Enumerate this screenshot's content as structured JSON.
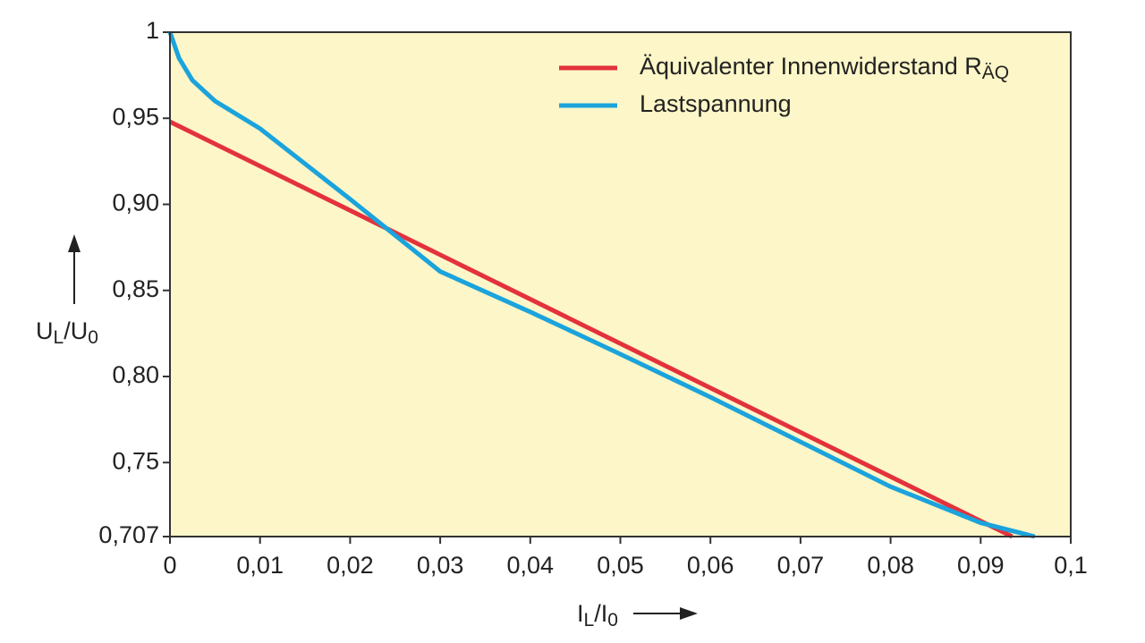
{
  "chart_data": {
    "type": "line",
    "xlabel": [
      "I",
      "L",
      "/I",
      "0"
    ],
    "ylabel": [
      "U",
      "L",
      "/U",
      "0"
    ],
    "xlim": [
      0,
      0.1
    ],
    "ylim": [
      0.707,
      1
    ],
    "xticks": [
      0,
      {
        "value": 0.01,
        "label": "0,01"
      },
      {
        "value": 0.02,
        "label": "0,02"
      },
      {
        "value": 0.03,
        "label": "0,03"
      },
      {
        "value": 0.04,
        "label": "0,04"
      },
      {
        "value": 0.05,
        "label": "0,05"
      },
      {
        "value": 0.06,
        "label": "0,06"
      },
      {
        "value": 0.07,
        "label": "0,07"
      },
      {
        "value": 0.08,
        "label": "0,08"
      },
      {
        "value": 0.09,
        "label": "0,09"
      },
      {
        "value": 0.1,
        "label": "0,1"
      }
    ],
    "yticks": [
      {
        "value": 0.707,
        "label": "0,707"
      },
      {
        "value": 0.75,
        "label": "0,75"
      },
      {
        "value": 0.8,
        "label": "0,80"
      },
      {
        "value": 0.85,
        "label": "0,85"
      },
      {
        "value": 0.9,
        "label": "0,90"
      },
      {
        "value": 0.95,
        "label": "0,95"
      },
      1
    ],
    "legend": "upper right",
    "series": [
      {
        "name": "Äquivalenter Innenwiderstand R",
        "name_sub": "ÄQ",
        "color": "#e3323c",
        "x": [
          0,
          0.0935
        ],
        "values": [
          0.948,
          0.707
        ]
      },
      {
        "name": "Lastspannung",
        "color": "#1ba3dc",
        "x": [
          0,
          0.001,
          0.0025,
          0.005,
          0.01,
          0.02,
          0.03,
          0.04,
          0.05,
          0.06,
          0.07,
          0.08,
          0.09,
          0.096
        ],
        "values": [
          1,
          0.985,
          0.972,
          0.96,
          0.944,
          0.903,
          0.861,
          0.8375,
          0.813,
          0.788,
          0.762,
          0.736,
          0.715,
          0.707
        ]
      }
    ]
  }
}
